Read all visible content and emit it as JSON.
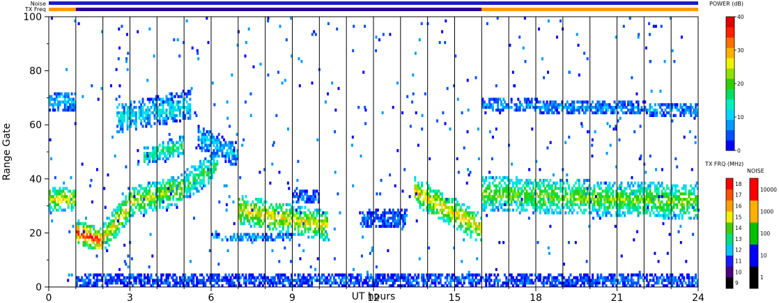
{
  "chart_data": {
    "type": "heatmap",
    "title": "",
    "xlabel": "UT hours",
    "ylabel": "Range Gate",
    "xlim": [
      0,
      24
    ],
    "ylim": [
      0,
      100
    ],
    "x_ticks": [
      0,
      3,
      6,
      9,
      12,
      15,
      18,
      21,
      24
    ],
    "y_ticks": [
      0,
      20,
      40,
      60,
      80,
      100
    ],
    "scan_lines_hours": [
      1,
      2,
      3,
      4,
      5,
      6,
      7,
      8,
      9,
      10,
      11,
      12,
      13,
      14,
      15,
      16,
      17,
      18,
      19,
      20,
      21,
      22,
      23
    ],
    "status_bars": {
      "noise_label": "Noise",
      "txfreq_label": "TX Freq",
      "noise_color": "#1c1cc8",
      "txfreq_segments": [
        {
          "start": 0,
          "end": 1,
          "color": "#ff9900"
        },
        {
          "start": 1,
          "end": 16,
          "color": "#2a0096"
        },
        {
          "start": 16,
          "end": 24,
          "color": "#ff9900"
        }
      ]
    },
    "power_colorbar": {
      "title": "POWER (dB)",
      "min": 0,
      "max": 40,
      "ticks": [
        0,
        10,
        20,
        30,
        40
      ],
      "colors": [
        "#0000ff",
        "#0050ff",
        "#0099ff",
        "#00d8ff",
        "#00f0c0",
        "#00e060",
        "#30d000",
        "#90e000",
        "#f0f000",
        "#ffb000",
        "#ff7000",
        "#ff2000",
        "#e00000"
      ]
    },
    "txfreq_colorbar": {
      "title": "TX FRQ (MHz)",
      "ticks": [
        9,
        10,
        11,
        12,
        13,
        14,
        15,
        16,
        17,
        18
      ],
      "colors": [
        "#000000",
        "#4b0082",
        "#1a1aff",
        "#00c8ff",
        "#00e080",
        "#40d000",
        "#f0f000",
        "#ffa000",
        "#ff5000",
        "#ff0000"
      ]
    },
    "noise_colorbar": {
      "title": "NOISE",
      "ticks": [
        1,
        10,
        100,
        1000,
        10000
      ],
      "colors": [
        "#000000",
        "#0000ff",
        "#00c000",
        "#ffb000",
        "#ff0000"
      ]
    },
    "echo_bands": [
      {
        "t0": 0.0,
        "t1": 1.0,
        "g0": 32,
        "g1": 32,
        "w": 4,
        "p": 26
      },
      {
        "t0": 1.0,
        "t1": 2.0,
        "g0": 20,
        "g1": 16,
        "w": 4,
        "p": 36
      },
      {
        "t0": 2.0,
        "t1": 3.0,
        "g0": 18,
        "g1": 30,
        "w": 5,
        "p": 27
      },
      {
        "t0": 3.0,
        "t1": 5.0,
        "g0": 31,
        "g1": 36,
        "w": 5,
        "p": 24
      },
      {
        "t0": 5.0,
        "t1": 6.2,
        "g0": 37,
        "g1": 45,
        "w": 5,
        "p": 18
      },
      {
        "t0": 7.0,
        "t1": 10.3,
        "g0": 28,
        "g1": 22,
        "w": 5,
        "p": 27
      },
      {
        "t0": 13.5,
        "t1": 16.0,
        "g0": 35,
        "g1": 21,
        "w": 5,
        "p": 28
      },
      {
        "t0": 16.0,
        "t1": 24.0,
        "g0": 34,
        "g1": 31,
        "w": 6,
        "p": 22
      },
      {
        "t0": 0.0,
        "t1": 1.0,
        "g0": 68,
        "g1": 68,
        "w": 3,
        "p": 10
      },
      {
        "t0": 2.5,
        "t1": 5.2,
        "g0": 62,
        "g1": 67,
        "w": 5,
        "p": 12
      },
      {
        "t0": 3.5,
        "t1": 5.0,
        "g0": 48,
        "g1": 52,
        "w": 3,
        "p": 18
      },
      {
        "t0": 16.0,
        "t1": 24.0,
        "g0": 67,
        "g1": 65,
        "w": 2,
        "p": 8
      },
      {
        "t0": 5.5,
        "t1": 7.0,
        "g0": 55,
        "g1": 48,
        "w": 4,
        "p": 10
      },
      {
        "t0": 9.0,
        "t1": 10.0,
        "g0": 33,
        "g1": 33,
        "w": 2,
        "p": 6
      },
      {
        "t0": 11.5,
        "t1": 13.2,
        "g0": 25,
        "g1": 25,
        "w": 3,
        "p": 6
      },
      {
        "t0": 6.0,
        "t1": 9.0,
        "g0": 18,
        "g1": 18,
        "w": 1,
        "p": 8
      },
      {
        "t0": 1.0,
        "t1": 24.0,
        "g0": 2,
        "g1": 2,
        "w": 2,
        "p": 5
      }
    ]
  }
}
